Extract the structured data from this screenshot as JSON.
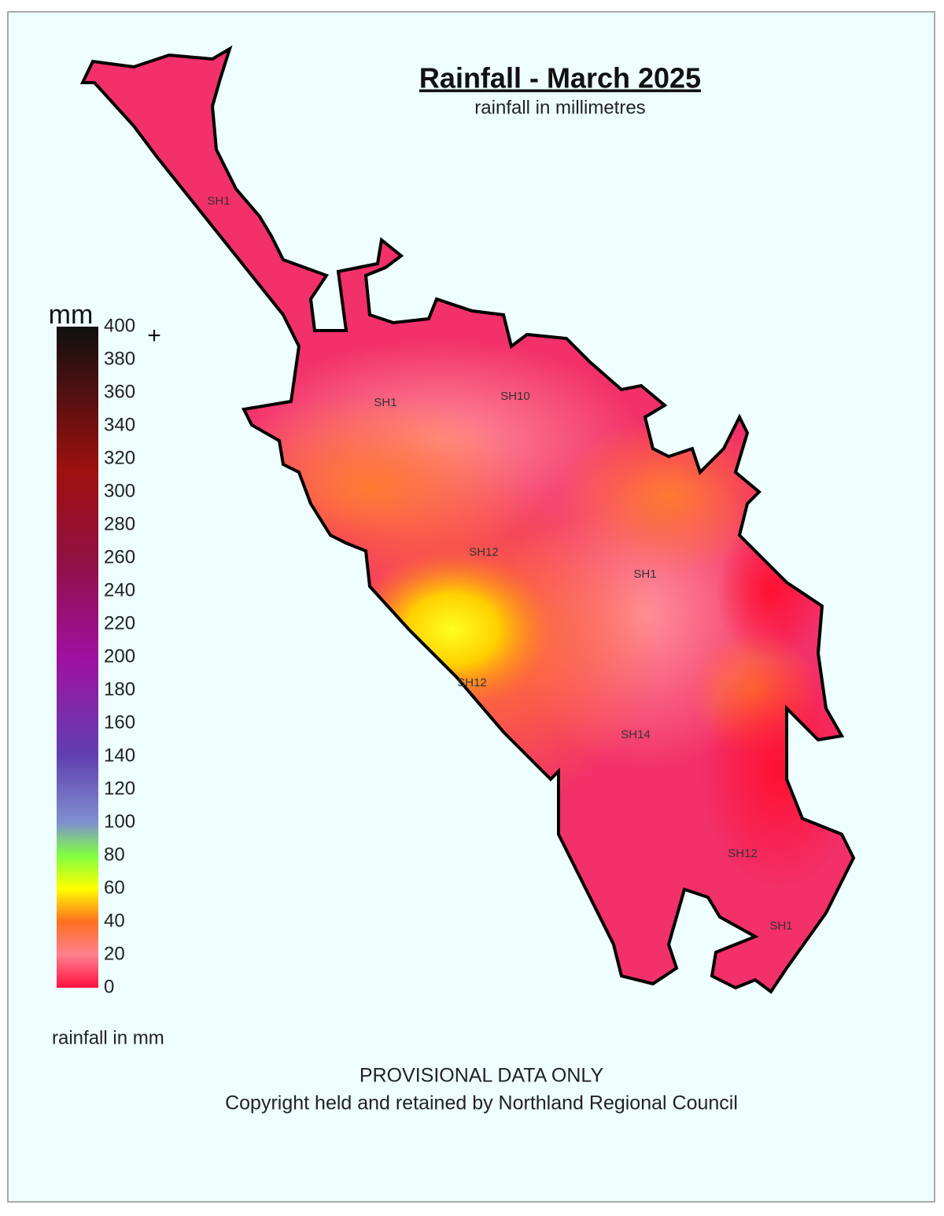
{
  "header": {
    "title": "Rainfall - March 2025",
    "subtitle": "rainfall in millimetres"
  },
  "legend": {
    "unit": "mm",
    "ticks": [
      0,
      20,
      40,
      60,
      80,
      100,
      120,
      140,
      160,
      180,
      200,
      220,
      240,
      260,
      280,
      300,
      320,
      340,
      360,
      380,
      400
    ],
    "plus": "+",
    "caption": "rainfall in mm"
  },
  "map": {
    "road_labels": [
      "SH1",
      "SH1",
      "SH10",
      "SH12",
      "SH1",
      "SH12",
      "SH14",
      "SH12",
      "SH1"
    ]
  },
  "footer": {
    "notice": "PROVISIONAL DATA ONLY",
    "copyright": "Copyright held and retained by Northland Regional Council"
  }
}
